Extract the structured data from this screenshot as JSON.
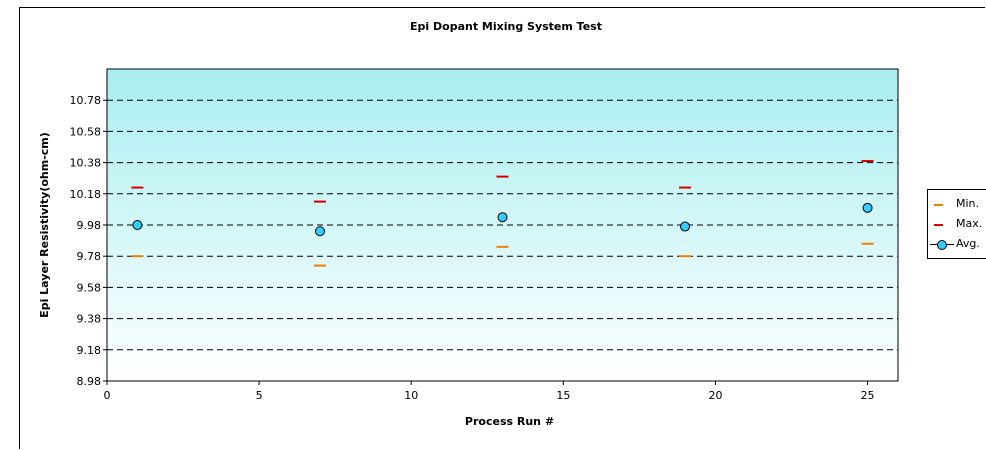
{
  "chart_data": {
    "type": "scatter",
    "title": "Epi Dopant Mixing System Test",
    "xlabel": "Process Run #",
    "ylabel": "Epi Layer Resistivity(ohm-cm)",
    "xlim": [
      0,
      26
    ],
    "ylim": [
      8.98,
      10.98
    ],
    "x_ticks": [
      "0",
      "5",
      "10",
      "15",
      "20",
      "25"
    ],
    "x_tick_values": [
      0,
      5,
      10,
      15,
      20,
      25
    ],
    "y_ticks": [
      "8.98",
      "9.18",
      "9.38",
      "9.58",
      "9.78",
      "9.98",
      "10.18",
      "10.38",
      "10.58",
      "10.78"
    ],
    "y_tick_values": [
      8.98,
      9.18,
      9.38,
      9.58,
      9.78,
      9.98,
      10.18,
      10.38,
      10.58,
      10.78
    ],
    "grid": true,
    "legend_position": "right",
    "x": [
      1,
      7,
      13,
      19,
      25
    ],
    "series": [
      {
        "name": "Min.",
        "marker": "dash",
        "color": "#f07f00",
        "values": [
          9.78,
          9.72,
          9.84,
          9.78,
          9.86
        ]
      },
      {
        "name": "Max.",
        "marker": "dash",
        "color": "#d90000",
        "values": [
          10.22,
          10.13,
          10.29,
          10.22,
          10.39
        ]
      },
      {
        "name": "Avg.",
        "marker": "circle",
        "color": "#33ccff",
        "values": [
          9.98,
          9.94,
          10.03,
          9.97,
          10.09
        ]
      }
    ]
  }
}
